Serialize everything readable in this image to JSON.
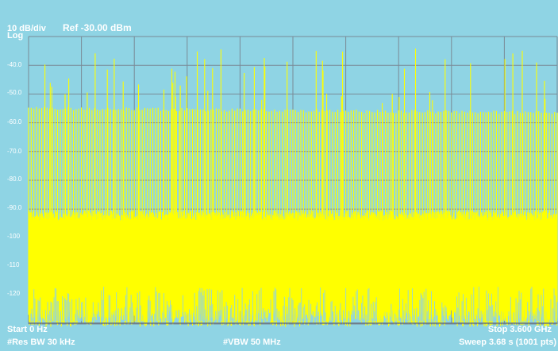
{
  "header": {
    "scale": "10 dB/div",
    "ref": "Ref -30.00 dBm",
    "mode": "Log"
  },
  "axis": {
    "y_ticks": [
      "-40.0",
      "-50.0",
      "-60.0",
      "-70.0",
      "-80.0",
      "-90.0",
      "-100",
      "-110",
      "-120"
    ]
  },
  "footer": {
    "start": "Start 0 Hz",
    "stop": "Stop 3.600 GHz",
    "rbw": "#Res BW 30 kHz",
    "vbw": "#VBW 50 MHz",
    "sweep": "Sweep  3.68 s (1001 pts)"
  },
  "colors": {
    "background": "#8fd4e4",
    "grid": "#7a8a96",
    "trace": "#ffff00",
    "text": "#ffffff"
  },
  "chart_data": {
    "type": "line",
    "x_range_hz": [
      0,
      3600000000
    ],
    "ylim_dbm": [
      -130,
      -30
    ],
    "y_scale_db_per_div": 10,
    "points": 1001,
    "peak_envelope_dbm": {
      "start": -55.5,
      "end": -57.2
    },
    "dense_floor_dbm": -94,
    "noise_floor_dbm": -128,
    "grid": true
  }
}
